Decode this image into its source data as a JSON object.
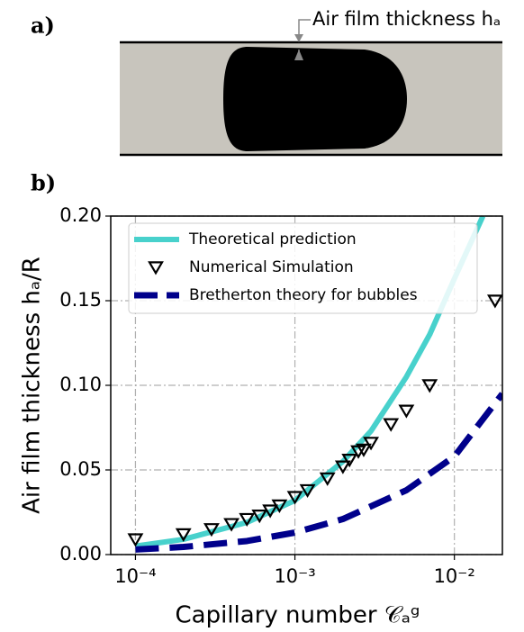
{
  "panels": {
    "a_label": "a)",
    "b_label": "b)",
    "annotation": "Air film thickness hₐ"
  },
  "chart_data": {
    "type": "line",
    "xlabel": "Capillary number 𝒞ₐᵍ",
    "ylabel": "Air film thickness hₐ/R",
    "xscale": "log",
    "xlim": [
      7e-05,
      0.02
    ],
    "ylim": [
      0,
      0.2
    ],
    "xticks": [
      {
        "value": 0.0001,
        "label": "10⁻⁴"
      },
      {
        "value": 0.001,
        "label": "10⁻³"
      },
      {
        "value": 0.01,
        "label": "10⁻²"
      }
    ],
    "yticks": [
      {
        "value": 0,
        "label": "0.00"
      },
      {
        "value": 0.05,
        "label": "0.05"
      },
      {
        "value": 0.1,
        "label": "0.10"
      },
      {
        "value": 0.15,
        "label": "0.15"
      },
      {
        "value": 0.2,
        "label": "0.20"
      }
    ],
    "grid": true,
    "legend": "upper left",
    "series": [
      {
        "name": "Theoretical prediction",
        "color": "#48d1cc",
        "style": "solid",
        "x": [
          0.0001,
          0.0002,
          0.0005,
          0.001,
          0.002,
          0.003,
          0.005,
          0.007,
          0.01,
          0.0151
        ],
        "values": [
          0.005,
          0.009,
          0.019,
          0.032,
          0.055,
          0.073,
          0.105,
          0.13,
          0.163,
          0.2
        ]
      },
      {
        "name": "Numerical Simulation",
        "color": "#000000",
        "style": "marker",
        "x": [
          0.0001,
          0.0002,
          0.0003,
          0.0004,
          0.0005,
          0.0006,
          0.0007,
          0.0008,
          0.001,
          0.0012,
          0.0016,
          0.002,
          0.0022,
          0.0025,
          0.0027,
          0.003,
          0.004,
          0.005,
          0.007,
          0.018
        ],
        "values": [
          0.009,
          0.012,
          0.015,
          0.018,
          0.021,
          0.023,
          0.026,
          0.029,
          0.034,
          0.038,
          0.045,
          0.052,
          0.056,
          0.061,
          0.062,
          0.066,
          0.077,
          0.085,
          0.1,
          0.15
        ]
      },
      {
        "name": "Bretherton theory for bubbles",
        "color": "#00008b",
        "style": "dashed",
        "x": [
          0.0001,
          0.0002,
          0.0005,
          0.001,
          0.002,
          0.005,
          0.01,
          0.02
        ],
        "values": [
          0.003,
          0.0045,
          0.008,
          0.013,
          0.021,
          0.038,
          0.058,
          0.095
        ]
      }
    ]
  }
}
